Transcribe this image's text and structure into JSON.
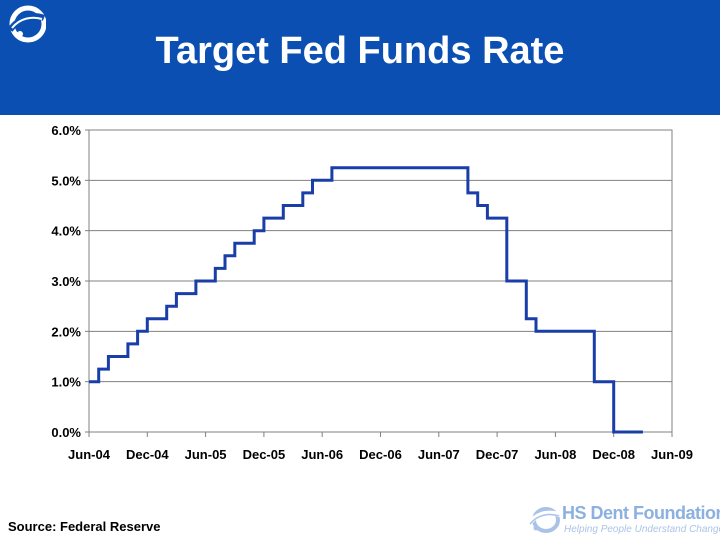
{
  "slide": {
    "title": "Target Fed Funds Rate",
    "source": "Source: Federal Reserve",
    "brand_name": "HS Dent Foundation",
    "brand_tagline": "Helping People Understand Change",
    "header_color": "#0a4fb1",
    "line_color": "#1a3ea8"
  },
  "chart_data": {
    "type": "line",
    "title": "",
    "xlabel": "",
    "ylabel": "",
    "ylim": [
      0,
      6
    ],
    "y_ticks": [
      "0.0%",
      "1.0%",
      "2.0%",
      "3.0%",
      "4.0%",
      "5.0%",
      "6.0%"
    ],
    "y_tick_values": [
      0,
      1,
      2,
      3,
      4,
      5,
      6
    ],
    "x_ticks": [
      "Jun-04",
      "Dec-04",
      "Jun-05",
      "Dec-05",
      "Jun-06",
      "Dec-06",
      "Jun-07",
      "Dec-07",
      "Jun-08",
      "Dec-08",
      "Jun-09"
    ],
    "x_tick_values": [
      "2004-06",
      "2004-12",
      "2005-06",
      "2005-12",
      "2006-06",
      "2006-12",
      "2007-06",
      "2007-12",
      "2008-06",
      "2008-12",
      "2009-06"
    ],
    "xlim": [
      "2004-06",
      "2009-06"
    ],
    "grid": true,
    "legend": "none",
    "series": [
      {
        "step": true,
        "points": [
          {
            "x": "2004-06",
            "y": 1.0
          },
          {
            "x": "2004-07",
            "y": 1.25
          },
          {
            "x": "2004-08",
            "y": 1.5
          },
          {
            "x": "2004-10",
            "y": 1.75
          },
          {
            "x": "2004-11",
            "y": 2.0
          },
          {
            "x": "2004-12",
            "y": 2.25
          },
          {
            "x": "2005-02",
            "y": 2.5
          },
          {
            "x": "2005-03",
            "y": 2.75
          },
          {
            "x": "2005-05",
            "y": 3.0
          },
          {
            "x": "2005-07",
            "y": 3.25
          },
          {
            "x": "2005-08",
            "y": 3.5
          },
          {
            "x": "2005-09",
            "y": 3.75
          },
          {
            "x": "2005-11",
            "y": 4.0
          },
          {
            "x": "2005-12",
            "y": 4.25
          },
          {
            "x": "2006-02",
            "y": 4.5
          },
          {
            "x": "2006-04",
            "y": 4.75
          },
          {
            "x": "2006-05",
            "y": 5.0
          },
          {
            "x": "2006-07",
            "y": 5.25
          },
          {
            "x": "2007-09",
            "y": 4.75
          },
          {
            "x": "2007-10",
            "y": 4.5
          },
          {
            "x": "2007-11",
            "y": 4.25
          },
          {
            "x": "2008-01",
            "y": 3.5
          },
          {
            "x": "2008-01",
            "y": 3.0
          },
          {
            "x": "2008-03",
            "y": 2.25
          },
          {
            "x": "2008-04",
            "y": 2.0
          },
          {
            "x": "2008-10",
            "y": 1.5
          },
          {
            "x": "2008-10",
            "y": 1.0
          },
          {
            "x": "2008-12",
            "y": 0.0
          },
          {
            "x": "2009-03",
            "y": 0.0
          }
        ]
      }
    ]
  }
}
